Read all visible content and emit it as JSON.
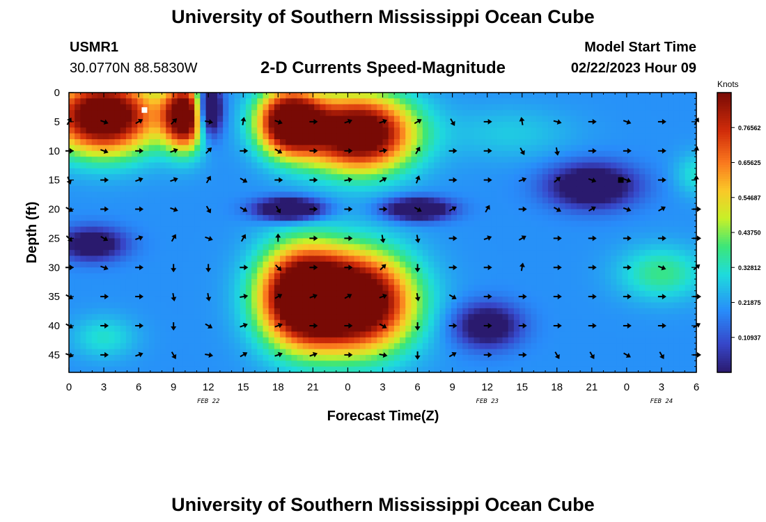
{
  "page": {
    "title": "University of Southern Mississippi Ocean Cube",
    "footer_title": "University of Southern Mississippi Ocean Cube",
    "station_id": "USMR1",
    "station_coords": "30.0770N  88.5830W",
    "model_start_label": "Model Start Time",
    "model_start_value": "02/22/2023 Hour 09"
  },
  "chart_data": {
    "type": "heatmap",
    "title": "2-D Currents Speed-Magnitude",
    "xlabel": "Forecast Time(Z)",
    "ylabel": "Depth (ft)",
    "colorbar_label": "Knots",
    "colorbar_ticks": [
      "0.10937",
      "0.21875",
      "0.32812",
      "0.43750",
      "0.54687",
      "0.65625",
      "0.76562"
    ],
    "colorbar_range": [
      0,
      0.875
    ],
    "x_tick_labels": [
      "0",
      "3",
      "6",
      "9",
      "12",
      "15",
      "18",
      "21",
      "0",
      "3",
      "6",
      "9",
      "12",
      "15",
      "18",
      "21",
      "0",
      "3",
      "6"
    ],
    "x_hours": [
      0,
      3,
      6,
      9,
      12,
      15,
      18,
      21,
      24,
      27,
      30,
      33,
      36,
      39,
      42,
      45,
      48,
      51,
      54
    ],
    "date_labels": [
      {
        "text": "FEB 22",
        "hour": 12
      },
      {
        "text": "FEB 23",
        "hour": 36
      },
      {
        "text": "FEB 24",
        "hour": 51
      }
    ],
    "y_ticks": [
      0,
      5,
      10,
      15,
      20,
      25,
      30,
      35,
      40,
      45
    ],
    "y_range": [
      0,
      48
    ],
    "x_range": [
      0,
      54
    ],
    "speed_blobs": [
      {
        "hour": 3,
        "depth": 4,
        "speed": 0.85,
        "sh": 5,
        "sd": 7
      },
      {
        "hour": 10,
        "depth": 4,
        "speed": 0.8,
        "sh": 2,
        "sd": 6
      },
      {
        "hour": 19,
        "depth": 5,
        "speed": 0.85,
        "sh": 3,
        "sd": 6
      },
      {
        "hour": 25,
        "depth": 7,
        "speed": 0.85,
        "sh": 5,
        "sd": 7
      },
      {
        "hour": 12,
        "depth": 3,
        "speed": -0.55,
        "sh": 1.2,
        "sd": 5
      },
      {
        "hour": 20,
        "depth": 35,
        "speed": 0.85,
        "sh": 4,
        "sd": 9
      },
      {
        "hour": 25,
        "depth": 36,
        "speed": 0.85,
        "sh": 5,
        "sd": 9
      },
      {
        "hour": 2,
        "depth": 26,
        "speed": -0.3,
        "sh": 3,
        "sd": 3
      },
      {
        "hour": 19,
        "depth": 20,
        "speed": -0.45,
        "sh": 3,
        "sd": 2
      },
      {
        "hour": 30,
        "depth": 20,
        "speed": -0.4,
        "sh": 3,
        "sd": 2
      },
      {
        "hour": 45,
        "depth": 16,
        "speed": -0.35,
        "sh": 4,
        "sd": 4
      },
      {
        "hour": 36,
        "depth": 40,
        "speed": -0.3,
        "sh": 3,
        "sd": 4
      },
      {
        "hour": 51,
        "depth": 31,
        "speed": 0.18,
        "sh": 4,
        "sd": 5
      },
      {
        "hour": 3,
        "depth": 42,
        "speed": 0.12,
        "sh": 3,
        "sd": 4
      },
      {
        "hour": 38,
        "depth": 7,
        "speed": 0.08,
        "sh": 6,
        "sd": 5
      },
      {
        "hour": 54,
        "depth": 14,
        "speed": 0.12,
        "sh": 2,
        "sd": 4
      }
    ],
    "base_speed": 0.2,
    "markers": [
      {
        "hour": 6.5,
        "depth": 3,
        "color": "#ffffff"
      },
      {
        "hour": 47.5,
        "depth": 15,
        "color": "#000000"
      }
    ],
    "arrow_hours": [
      0,
      3,
      6,
      9,
      12,
      15,
      18,
      21,
      24,
      27,
      30,
      33,
      36,
      39,
      42,
      45,
      48,
      51,
      54
    ],
    "arrow_depths": [
      5,
      10,
      15,
      20,
      25,
      30,
      35,
      40,
      45
    ],
    "arrow_angles": [
      [
        60,
        -20,
        30,
        45,
        -10,
        80,
        -20,
        0,
        20,
        20,
        30,
        -60,
        0,
        100,
        -15,
        0,
        -20,
        0,
        60
      ],
      [
        0,
        -20,
        0,
        20,
        45,
        0,
        -30,
        0,
        0,
        10,
        60,
        0,
        0,
        -60,
        -80,
        0,
        0,
        0,
        80
      ],
      [
        -70,
        0,
        20,
        20,
        60,
        -30,
        0,
        0,
        10,
        30,
        70,
        0,
        0,
        20,
        40,
        -20,
        -20,
        0,
        90
      ],
      [
        -30,
        0,
        0,
        -20,
        -60,
        -30,
        -60,
        0,
        0,
        0,
        -30,
        30,
        60,
        0,
        -30,
        30,
        -20,
        30,
        0
      ],
      [
        -45,
        -30,
        20,
        60,
        -20,
        60,
        90,
        0,
        0,
        -80,
        -80,
        0,
        20,
        30,
        0,
        0,
        0,
        0,
        0
      ],
      [
        0,
        -20,
        0,
        -90,
        -90,
        0,
        -45,
        0,
        0,
        45,
        -90,
        0,
        0,
        80,
        0,
        0,
        0,
        -20,
        40
      ],
      [
        -30,
        0,
        0,
        -80,
        -80,
        10,
        30,
        20,
        30,
        20,
        -80,
        -30,
        0,
        0,
        0,
        0,
        0,
        0,
        0
      ],
      [
        -30,
        0,
        0,
        -90,
        -30,
        20,
        20,
        0,
        0,
        -30,
        -90,
        0,
        0,
        0,
        0,
        0,
        0,
        0,
        30
      ],
      [
        -20,
        0,
        20,
        -60,
        -10,
        30,
        20,
        20,
        0,
        -10,
        -90,
        30,
        0,
        0,
        -60,
        -60,
        -30,
        -60,
        0
      ]
    ]
  }
}
